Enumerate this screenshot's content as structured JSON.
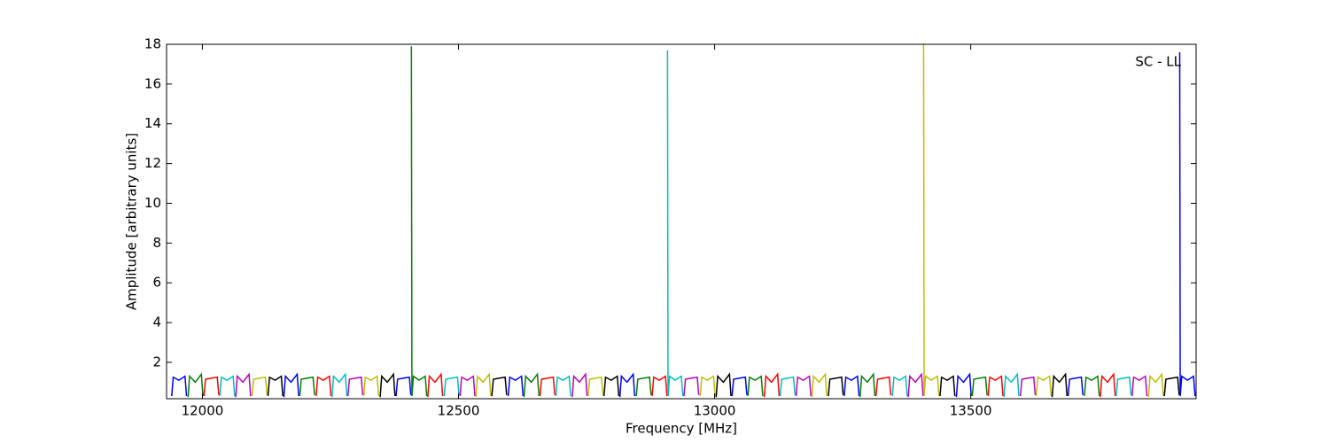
{
  "chart_data": {
    "type": "line",
    "x_label": "Frequency [MHz]",
    "y_label": "Amplitude [arbitrary units]",
    "annotation": "SC - LL",
    "xlim": [
      11930,
      13940
    ],
    "ylim": [
      0.17,
      18
    ],
    "xticks": [
      12000,
      12500,
      13000,
      13500
    ],
    "yticks": [
      2,
      4,
      6,
      8,
      10,
      12,
      14,
      16,
      18
    ],
    "series": [
      {
        "color": "#0000ff",
        "x": [
          11940,
          11943,
          11954,
          11966,
          11969
        ],
        "values": [
          0.3,
          1.25,
          1.1,
          1.3,
          0.3
        ]
      },
      {
        "color": "#008000",
        "x": [
          11972,
          11975,
          11986,
          11998,
          12001
        ],
        "values": [
          0.25,
          1.3,
          1.0,
          1.4,
          0.3
        ]
      },
      {
        "color": "#ff0000",
        "x": [
          12003,
          12006,
          12017,
          12029,
          12032
        ],
        "values": [
          0.3,
          1.15,
          1.2,
          1.25,
          0.35
        ]
      },
      {
        "color": "#00bfbf",
        "x": [
          12034,
          12037,
          12048,
          12060,
          12063
        ],
        "values": [
          0.3,
          1.25,
          1.1,
          1.3,
          0.3
        ]
      },
      {
        "color": "#bf00bf",
        "x": [
          12065,
          12068,
          12079,
          12091,
          12094
        ],
        "values": [
          0.25,
          1.3,
          1.0,
          1.4,
          0.3
        ]
      },
      {
        "color": "#bfbf00",
        "x": [
          12097,
          12100,
          12111,
          12123,
          12126
        ],
        "values": [
          0.3,
          1.15,
          1.2,
          1.25,
          0.35
        ]
      },
      {
        "color": "#000000",
        "x": [
          12128,
          12131,
          12142,
          12154,
          12157
        ],
        "values": [
          0.3,
          1.25,
          1.1,
          1.3,
          0.3
        ]
      },
      {
        "color": "#0000ff",
        "x": [
          12159,
          12162,
          12173,
          12185,
          12188
        ],
        "values": [
          0.25,
          1.3,
          1.0,
          1.4,
          0.3
        ]
      },
      {
        "color": "#008000",
        "x": [
          12190,
          12193,
          12204,
          12216,
          12219
        ],
        "values": [
          0.3,
          1.15,
          1.2,
          1.25,
          0.35
        ]
      },
      {
        "color": "#ff0000",
        "x": [
          12222,
          12225,
          12236,
          12248,
          12251
        ],
        "values": [
          0.3,
          1.25,
          1.1,
          1.3,
          0.3
        ]
      },
      {
        "color": "#00bfbf",
        "x": [
          12253,
          12256,
          12267,
          12279,
          12282
        ],
        "values": [
          0.25,
          1.3,
          1.0,
          1.4,
          0.3
        ]
      },
      {
        "color": "#bf00bf",
        "x": [
          12284,
          12287,
          12298,
          12310,
          12313
        ],
        "values": [
          0.3,
          1.15,
          1.2,
          1.25,
          0.35
        ]
      },
      {
        "color": "#bfbf00",
        "x": [
          12315,
          12318,
          12329,
          12341,
          12344
        ],
        "values": [
          0.3,
          1.25,
          1.1,
          1.3,
          0.3
        ]
      },
      {
        "color": "#000000",
        "x": [
          12347,
          12350,
          12361,
          12373,
          12376
        ],
        "values": [
          0.25,
          1.3,
          1.0,
          1.4,
          0.3
        ]
      },
      {
        "color": "#0000ff",
        "x": [
          12378,
          12381,
          12392,
          12404,
          12407
        ],
        "values": [
          0.3,
          1.15,
          1.2,
          1.25,
          0.35
        ]
      },
      {
        "color": "#008000",
        "x": [
          12408,
          12409,
          12412,
          12423,
          12435,
          12438
        ],
        "values": [
          17.9,
          0.3,
          1.3,
          1.1,
          1.3,
          0.3
        ]
      },
      {
        "color": "#ff0000",
        "x": [
          12440,
          12443,
          12454,
          12466,
          12469
        ],
        "values": [
          0.25,
          1.3,
          1.0,
          1.4,
          0.3
        ]
      },
      {
        "color": "#00bfbf",
        "x": [
          12472,
          12475,
          12486,
          12498,
          12501
        ],
        "values": [
          0.3,
          1.15,
          1.2,
          1.25,
          0.35
        ]
      },
      {
        "color": "#bf00bf",
        "x": [
          12503,
          12506,
          12517,
          12529,
          12532
        ],
        "values": [
          0.3,
          1.25,
          1.1,
          1.3,
          0.3
        ]
      },
      {
        "color": "#bfbf00",
        "x": [
          12534,
          12537,
          12548,
          12560,
          12563
        ],
        "values": [
          0.25,
          1.3,
          1.0,
          1.4,
          0.3
        ]
      },
      {
        "color": "#000000",
        "x": [
          12565,
          12568,
          12579,
          12591,
          12594
        ],
        "values": [
          0.3,
          1.15,
          1.2,
          1.25,
          0.35
        ]
      },
      {
        "color": "#0000ff",
        "x": [
          12597,
          12600,
          12611,
          12623,
          12626
        ],
        "values": [
          0.3,
          1.25,
          1.1,
          1.3,
          0.3
        ]
      },
      {
        "color": "#008000",
        "x": [
          12628,
          12631,
          12642,
          12654,
          12657
        ],
        "values": [
          0.25,
          1.3,
          1.0,
          1.4,
          0.3
        ]
      },
      {
        "color": "#ff0000",
        "x": [
          12659,
          12662,
          12673,
          12685,
          12688
        ],
        "values": [
          0.3,
          1.15,
          1.2,
          1.25,
          0.35
        ]
      },
      {
        "color": "#00bfbf",
        "x": [
          12690,
          12693,
          12704,
          12716,
          12719
        ],
        "values": [
          0.3,
          1.25,
          1.1,
          1.3,
          0.3
        ]
      },
      {
        "color": "#bf00bf",
        "x": [
          12722,
          12725,
          12736,
          12748,
          12751
        ],
        "values": [
          0.25,
          1.3,
          1.0,
          1.4,
          0.3
        ]
      },
      {
        "color": "#bfbf00",
        "x": [
          12753,
          12756,
          12767,
          12779,
          12782
        ],
        "values": [
          0.3,
          1.15,
          1.2,
          1.25,
          0.35
        ]
      },
      {
        "color": "#000000",
        "x": [
          12784,
          12787,
          12798,
          12810,
          12813
        ],
        "values": [
          0.3,
          1.25,
          1.1,
          1.3,
          0.3
        ]
      },
      {
        "color": "#0000ff",
        "x": [
          12815,
          12818,
          12829,
          12841,
          12844
        ],
        "values": [
          0.25,
          1.3,
          1.0,
          1.4,
          0.3
        ]
      },
      {
        "color": "#008000",
        "x": [
          12847,
          12850,
          12861,
          12873,
          12876
        ],
        "values": [
          0.3,
          1.15,
          1.2,
          1.25,
          0.35
        ]
      },
      {
        "color": "#ff0000",
        "x": [
          12878,
          12881,
          12892,
          12904,
          12907
        ],
        "values": [
          0.3,
          1.25,
          1.1,
          1.3,
          0.3
        ]
      },
      {
        "color": "#00bfbf",
        "x": [
          12908,
          12909,
          12912,
          12923,
          12935,
          12938
        ],
        "values": [
          17.7,
          0.3,
          1.3,
          1.1,
          1.3,
          0.3
        ]
      },
      {
        "color": "#bf00bf",
        "x": [
          12940,
          12943,
          12954,
          12966,
          12969
        ],
        "values": [
          0.3,
          1.15,
          1.2,
          1.25,
          0.35
        ]
      },
      {
        "color": "#bfbf00",
        "x": [
          12972,
          12975,
          12986,
          12998,
          13001
        ],
        "values": [
          0.3,
          1.25,
          1.1,
          1.3,
          0.3
        ]
      },
      {
        "color": "#000000",
        "x": [
          13003,
          13006,
          13017,
          13029,
          13032
        ],
        "values": [
          0.25,
          1.3,
          1.0,
          1.4,
          0.3
        ]
      },
      {
        "color": "#0000ff",
        "x": [
          13034,
          13037,
          13048,
          13060,
          13063
        ],
        "values": [
          0.3,
          1.15,
          1.2,
          1.25,
          0.35
        ]
      },
      {
        "color": "#008000",
        "x": [
          13065,
          13068,
          13079,
          13091,
          13094
        ],
        "values": [
          0.3,
          1.25,
          1.1,
          1.3,
          0.3
        ]
      },
      {
        "color": "#ff0000",
        "x": [
          13097,
          13100,
          13111,
          13123,
          13126
        ],
        "values": [
          0.25,
          1.3,
          1.0,
          1.4,
          0.3
        ]
      },
      {
        "color": "#00bfbf",
        "x": [
          13128,
          13131,
          13142,
          13154,
          13157
        ],
        "values": [
          0.3,
          1.15,
          1.2,
          1.25,
          0.35
        ]
      },
      {
        "color": "#bf00bf",
        "x": [
          13159,
          13162,
          13173,
          13185,
          13188
        ],
        "values": [
          0.3,
          1.25,
          1.1,
          1.3,
          0.3
        ]
      },
      {
        "color": "#bfbf00",
        "x": [
          13190,
          13193,
          13204,
          13216,
          13219
        ],
        "values": [
          0.25,
          1.3,
          1.0,
          1.4,
          0.3
        ]
      },
      {
        "color": "#000000",
        "x": [
          13222,
          13225,
          13236,
          13248,
          13251
        ],
        "values": [
          0.3,
          1.15,
          1.2,
          1.25,
          0.35
        ]
      },
      {
        "color": "#0000ff",
        "x": [
          13253,
          13256,
          13267,
          13279,
          13282
        ],
        "values": [
          0.3,
          1.25,
          1.1,
          1.3,
          0.3
        ]
      },
      {
        "color": "#008000",
        "x": [
          13284,
          13287,
          13298,
          13310,
          13313
        ],
        "values": [
          0.25,
          1.3,
          1.0,
          1.4,
          0.3
        ]
      },
      {
        "color": "#ff0000",
        "x": [
          13315,
          13318,
          13329,
          13341,
          13344
        ],
        "values": [
          0.3,
          1.15,
          1.2,
          1.25,
          0.35
        ]
      },
      {
        "color": "#00bfbf",
        "x": [
          13347,
          13350,
          13361,
          13373,
          13376
        ],
        "values": [
          0.3,
          1.25,
          1.1,
          1.3,
          0.3
        ]
      },
      {
        "color": "#bf00bf",
        "x": [
          13378,
          13381,
          13392,
          13404,
          13407
        ],
        "values": [
          0.25,
          1.3,
          1.0,
          1.4,
          0.3
        ]
      },
      {
        "color": "#bfbf00",
        "x": [
          13408,
          13409,
          13412,
          13423,
          13435,
          13438
        ],
        "values": [
          18,
          0.3,
          1.3,
          1.1,
          1.3,
          0.3
        ]
      },
      {
        "color": "#000000",
        "x": [
          13440,
          13443,
          13454,
          13466,
          13469
        ],
        "values": [
          0.3,
          1.25,
          1.1,
          1.3,
          0.3
        ]
      },
      {
        "color": "#0000ff",
        "x": [
          13472,
          13475,
          13486,
          13498,
          13501
        ],
        "values": [
          0.25,
          1.3,
          1.0,
          1.4,
          0.3
        ]
      },
      {
        "color": "#008000",
        "x": [
          13503,
          13506,
          13517,
          13529,
          13532
        ],
        "values": [
          0.3,
          1.15,
          1.2,
          1.25,
          0.35
        ]
      },
      {
        "color": "#ff0000",
        "x": [
          13534,
          13537,
          13548,
          13560,
          13563
        ],
        "values": [
          0.3,
          1.25,
          1.1,
          1.3,
          0.3
        ]
      },
      {
        "color": "#00bfbf",
        "x": [
          13565,
          13568,
          13579,
          13591,
          13594
        ],
        "values": [
          0.25,
          1.3,
          1.0,
          1.4,
          0.3
        ]
      },
      {
        "color": "#bf00bf",
        "x": [
          13597,
          13600,
          13611,
          13623,
          13626
        ],
        "values": [
          0.3,
          1.15,
          1.2,
          1.25,
          0.35
        ]
      },
      {
        "color": "#bfbf00",
        "x": [
          13628,
          13631,
          13642,
          13654,
          13657
        ],
        "values": [
          0.3,
          1.25,
          1.1,
          1.3,
          0.3
        ]
      },
      {
        "color": "#000000",
        "x": [
          13659,
          13662,
          13673,
          13685,
          13688
        ],
        "values": [
          0.25,
          1.3,
          1.0,
          1.4,
          0.3
        ]
      },
      {
        "color": "#0000ff",
        "x": [
          13690,
          13693,
          13704,
          13716,
          13719
        ],
        "values": [
          0.3,
          1.15,
          1.2,
          1.25,
          0.35
        ]
      },
      {
        "color": "#008000",
        "x": [
          13722,
          13725,
          13736,
          13748,
          13751
        ],
        "values": [
          0.3,
          1.25,
          1.1,
          1.3,
          0.3
        ]
      },
      {
        "color": "#ff0000",
        "x": [
          13753,
          13756,
          13767,
          13779,
          13782
        ],
        "values": [
          0.25,
          1.3,
          1.0,
          1.4,
          0.3
        ]
      },
      {
        "color": "#00bfbf",
        "x": [
          13784,
          13787,
          13798,
          13810,
          13813
        ],
        "values": [
          0.3,
          1.15,
          1.2,
          1.25,
          0.35
        ]
      },
      {
        "color": "#bf00bf",
        "x": [
          13815,
          13818,
          13829,
          13841,
          13844
        ],
        "values": [
          0.3,
          1.25,
          1.1,
          1.3,
          0.3
        ]
      },
      {
        "color": "#bfbf00",
        "x": [
          13847,
          13850,
          13861,
          13873,
          13876
        ],
        "values": [
          0.25,
          1.3,
          1.0,
          1.4,
          0.3
        ]
      },
      {
        "color": "#000000",
        "x": [
          13878,
          13881,
          13892,
          13904,
          13907
        ],
        "values": [
          0.3,
          1.15,
          1.2,
          1.25,
          0.35
        ]
      },
      {
        "color": "#0000ff",
        "x": [
          13908,
          13909,
          13912,
          13923,
          13935,
          13938
        ],
        "values": [
          17.6,
          0.3,
          1.3,
          1.1,
          1.3,
          0.3
        ]
      }
    ]
  }
}
